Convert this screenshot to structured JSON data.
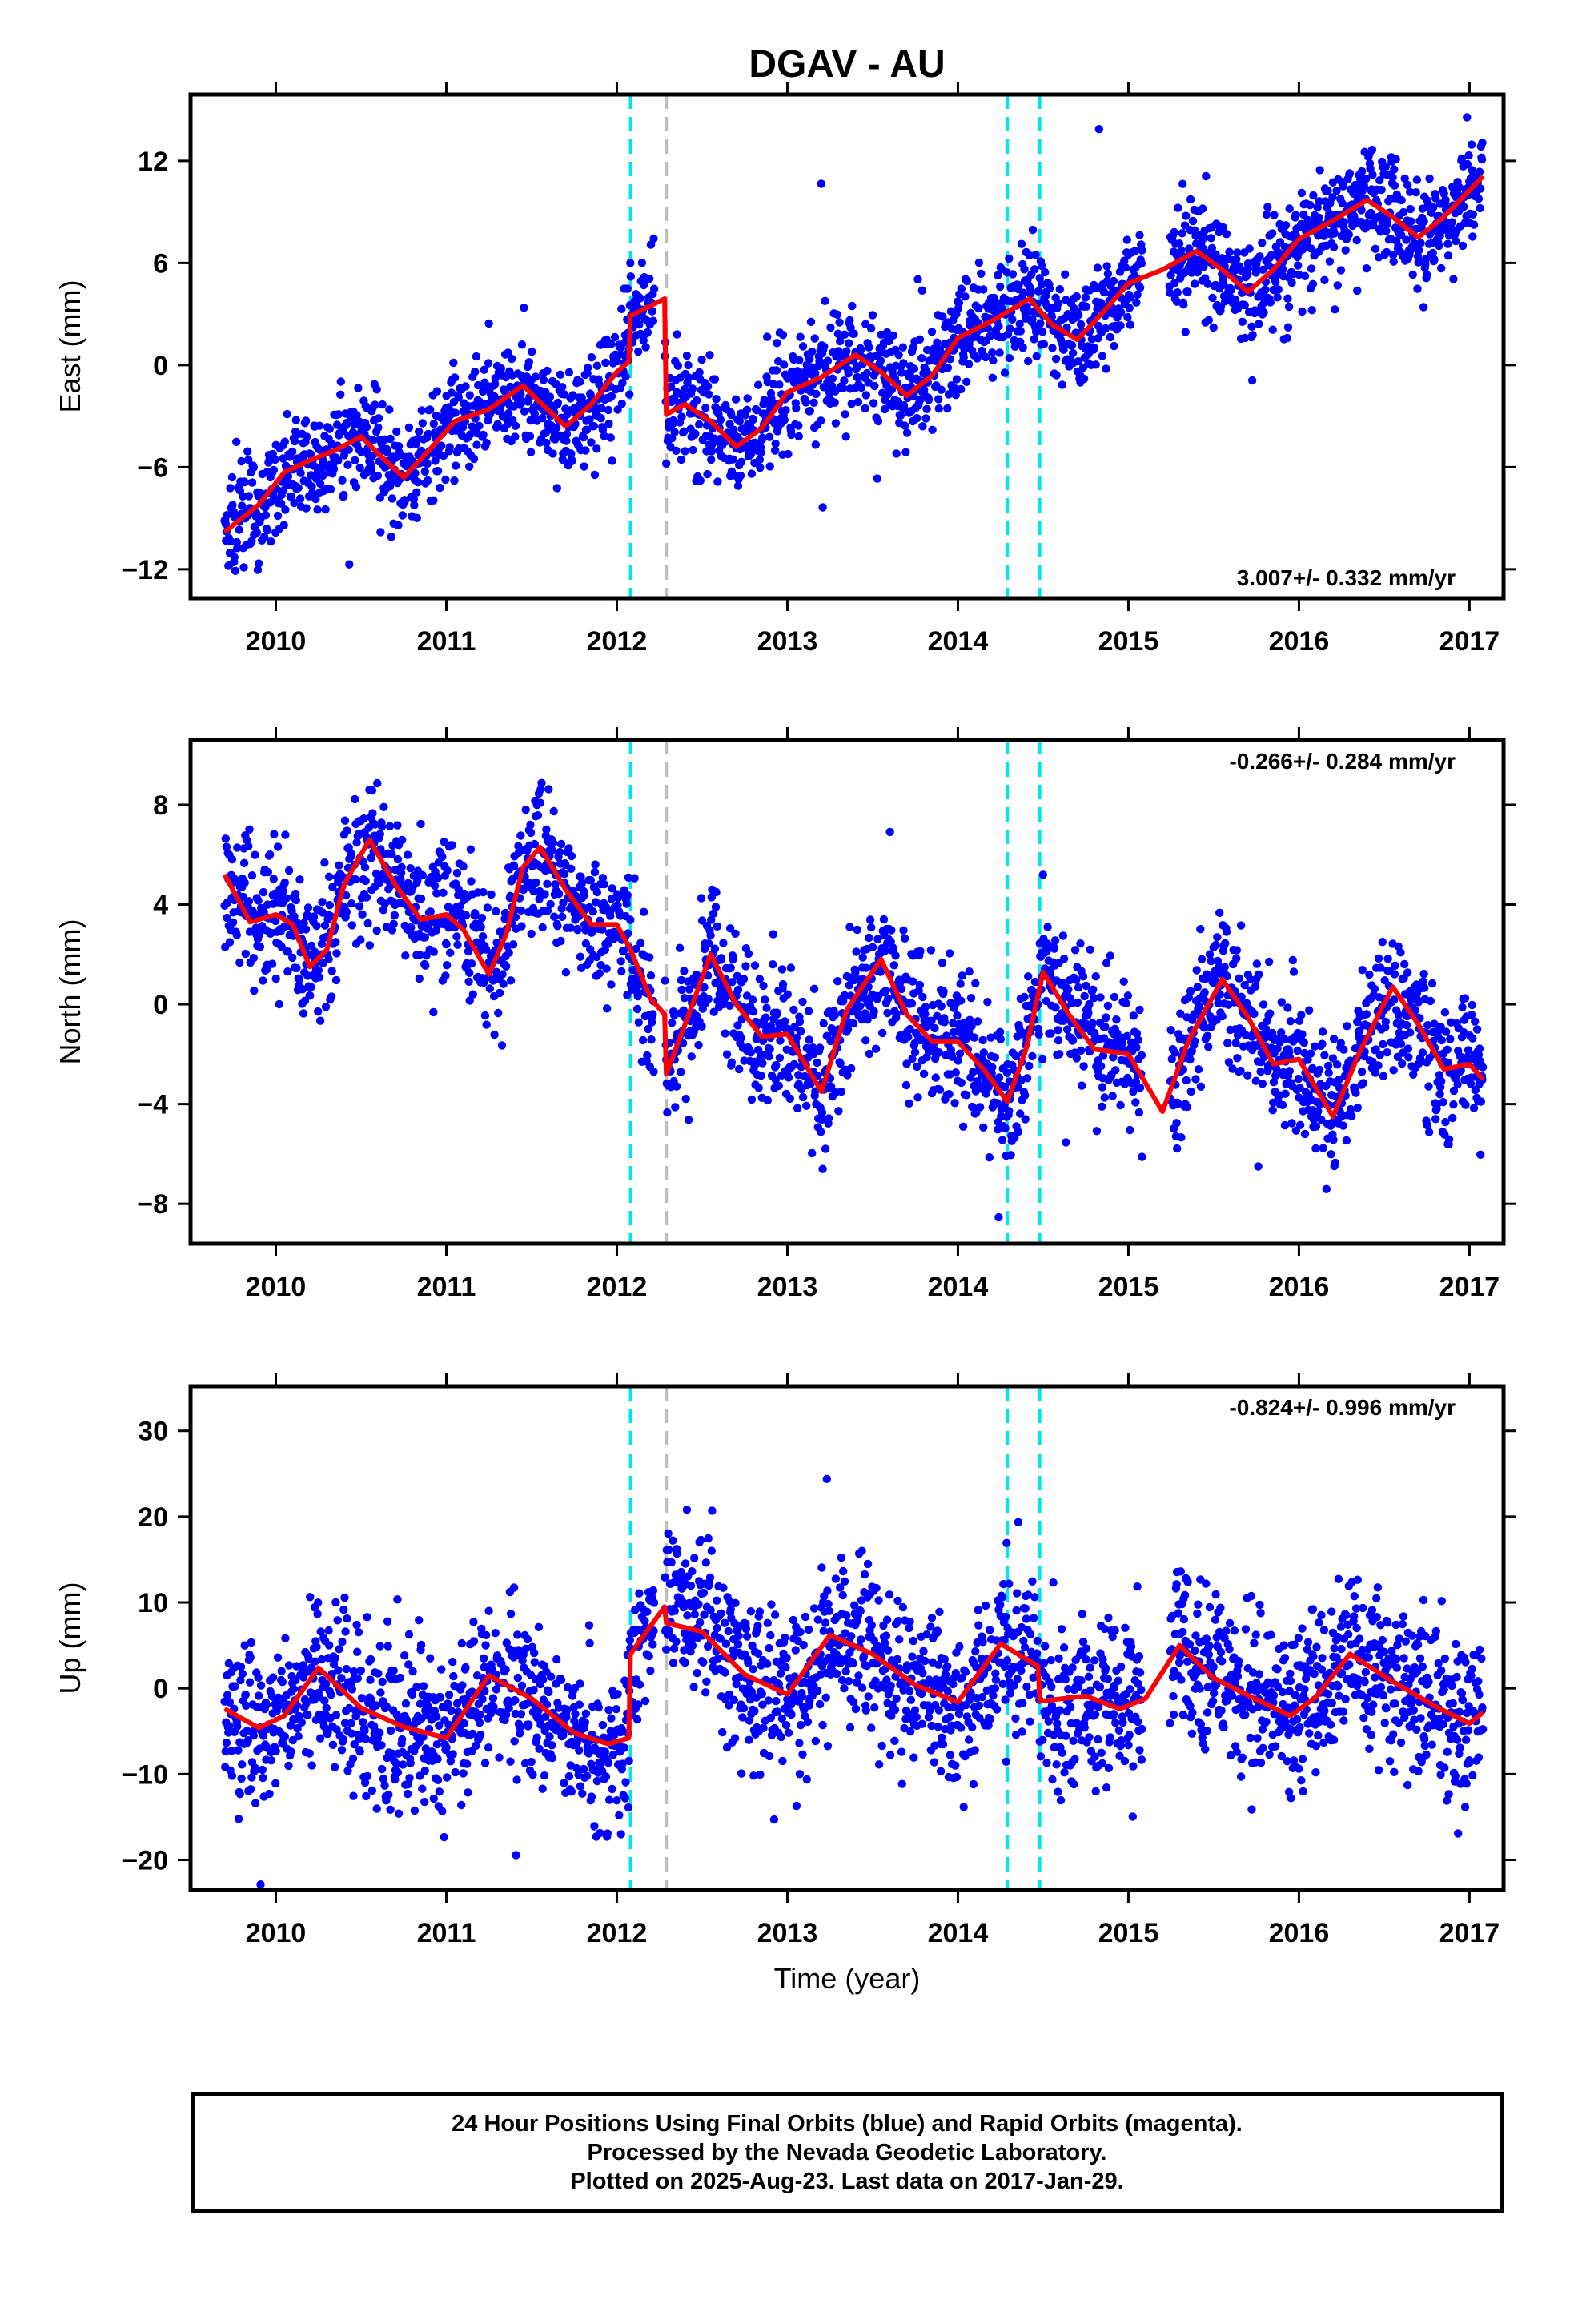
{
  "chart_data": {
    "type": "scatter",
    "title": "DGAV - AU",
    "xlabel": "Time (year)",
    "xlim": [
      2009.5,
      2017.2
    ],
    "x_ticks": [
      "2010",
      "2011",
      "2012",
      "2013",
      "2014",
      "2015",
      "2016",
      "2017"
    ],
    "event_lines": [
      {
        "x": 2012.08,
        "color": "#00e5ee",
        "style": "dashed"
      },
      {
        "x": 2012.29,
        "color": "#c0c0c0",
        "style": "dashed"
      },
      {
        "x": 2014.29,
        "color": "#00e5ee",
        "style": "dashed"
      },
      {
        "x": 2014.48,
        "color": "#00e5ee",
        "style": "dashed"
      }
    ],
    "data_start": 2009.7,
    "data_end": 2017.08,
    "point_color": "#0000ff",
    "model_color": "#ff0000",
    "panels": [
      {
        "key": "east",
        "ylabel": "East (mm)",
        "ylim": [
          -13.7,
          15.9
        ],
        "y_ticks": [
          -12,
          -6,
          0,
          6,
          12
        ],
        "rate_label": "3.007+/- 0.332 mm/yr",
        "rate_position": "bottom-right",
        "model": [
          [
            2009.7,
            -9.8
          ],
          [
            2009.9,
            -8.2
          ],
          [
            2010.05,
            -6.3
          ],
          [
            2010.2,
            -5.6
          ],
          [
            2010.35,
            -5.0
          ],
          [
            2010.5,
            -4.2
          ],
          [
            2010.6,
            -5.2
          ],
          [
            2010.75,
            -6.6
          ],
          [
            2010.9,
            -5.0
          ],
          [
            2011.05,
            -3.3
          ],
          [
            2011.25,
            -2.6
          ],
          [
            2011.45,
            -1.2
          ],
          [
            2011.55,
            -2.2
          ],
          [
            2011.7,
            -3.6
          ],
          [
            2011.85,
            -2.3
          ],
          [
            2012.0,
            -0.4
          ],
          [
            2012.07,
            0.2
          ],
          [
            2012.08,
            2.9
          ],
          [
            2012.28,
            3.9
          ],
          [
            2012.29,
            -2.9
          ],
          [
            2012.4,
            -2.3
          ],
          [
            2012.55,
            -3.3
          ],
          [
            2012.7,
            -4.8
          ],
          [
            2012.85,
            -3.7
          ],
          [
            2013.0,
            -1.6
          ],
          [
            2013.2,
            -0.7
          ],
          [
            2013.4,
            0.6
          ],
          [
            2013.55,
            -0.4
          ],
          [
            2013.7,
            -1.8
          ],
          [
            2013.85,
            -0.6
          ],
          [
            2014.0,
            1.6
          ],
          [
            2014.2,
            2.6
          ],
          [
            2014.42,
            3.9
          ],
          [
            2014.55,
            2.4
          ],
          [
            2014.7,
            1.5
          ],
          [
            2014.85,
            3.1
          ],
          [
            2015.0,
            4.8
          ],
          [
            2015.2,
            5.6
          ],
          [
            2015.4,
            6.7
          ],
          [
            2015.55,
            5.6
          ],
          [
            2015.7,
            4.3
          ],
          [
            2015.85,
            5.6
          ],
          [
            2016.0,
            7.4
          ],
          [
            2016.2,
            8.5
          ],
          [
            2016.4,
            9.7
          ],
          [
            2016.55,
            8.7
          ],
          [
            2016.7,
            7.5
          ],
          [
            2016.85,
            8.7
          ],
          [
            2017.08,
            11.1
          ]
        ]
      },
      {
        "key": "north",
        "ylabel": "North (mm)",
        "ylim": [
          -9.6,
          10.6
        ],
        "y_ticks": [
          -8,
          -4,
          0,
          4,
          8
        ],
        "rate_label": "-0.266+/- 0.284 mm/yr",
        "rate_position": "top-right",
        "model": [
          [
            2009.7,
            5.2
          ],
          [
            2009.85,
            3.3
          ],
          [
            2010.0,
            3.6
          ],
          [
            2010.1,
            3.2
          ],
          [
            2010.2,
            1.5
          ],
          [
            2010.3,
            2.2
          ],
          [
            2010.4,
            4.8
          ],
          [
            2010.55,
            6.6
          ],
          [
            2010.7,
            4.8
          ],
          [
            2010.85,
            3.4
          ],
          [
            2011.0,
            3.6
          ],
          [
            2011.1,
            3.0
          ],
          [
            2011.25,
            1.2
          ],
          [
            2011.35,
            2.8
          ],
          [
            2011.45,
            5.5
          ],
          [
            2011.55,
            6.3
          ],
          [
            2011.7,
            4.6
          ],
          [
            2011.85,
            3.2
          ],
          [
            2012.0,
            3.2
          ],
          [
            2012.08,
            2.2
          ],
          [
            2012.2,
            0.2
          ],
          [
            2012.28,
            -0.4
          ],
          [
            2012.29,
            -2.8
          ],
          [
            2012.4,
            -0.8
          ],
          [
            2012.55,
            2.0
          ],
          [
            2012.7,
            0.0
          ],
          [
            2012.85,
            -1.3
          ],
          [
            2013.0,
            -1.2
          ],
          [
            2013.2,
            -3.5
          ],
          [
            2013.35,
            -0.2
          ],
          [
            2013.55,
            1.8
          ],
          [
            2013.7,
            -0.4
          ],
          [
            2013.85,
            -1.5
          ],
          [
            2014.0,
            -1.5
          ],
          [
            2014.15,
            -2.6
          ],
          [
            2014.29,
            -3.9
          ],
          [
            2014.4,
            -1.8
          ],
          [
            2014.5,
            1.3
          ],
          [
            2014.65,
            -0.4
          ],
          [
            2014.8,
            -1.8
          ],
          [
            2015.0,
            -2.0
          ],
          [
            2015.2,
            -4.3
          ],
          [
            2015.35,
            -1.5
          ],
          [
            2015.55,
            1.0
          ],
          [
            2015.7,
            -0.5
          ],
          [
            2015.85,
            -2.4
          ],
          [
            2016.0,
            -2.2
          ],
          [
            2016.2,
            -4.5
          ],
          [
            2016.35,
            -2.0
          ],
          [
            2016.55,
            0.7
          ],
          [
            2016.7,
            -0.8
          ],
          [
            2016.85,
            -2.6
          ],
          [
            2017.0,
            -2.4
          ],
          [
            2017.08,
            -3.0
          ]
        ]
      },
      {
        "key": "up",
        "ylabel": "Up (mm)",
        "ylim": [
          -23.5,
          35.2
        ],
        "y_ticks": [
          -20,
          -10,
          0,
          10,
          20,
          30
        ],
        "rate_label": "-0.824+/- 0.996 mm/yr",
        "rate_position": "top-right",
        "model": [
          [
            2009.7,
            -2.4
          ],
          [
            2009.9,
            -4.6
          ],
          [
            2010.05,
            -3.2
          ],
          [
            2010.25,
            2.4
          ],
          [
            2010.5,
            -2.3
          ],
          [
            2010.75,
            -4.5
          ],
          [
            2011.0,
            -5.8
          ],
          [
            2011.25,
            1.5
          ],
          [
            2011.5,
            -1.2
          ],
          [
            2011.75,
            -5.2
          ],
          [
            2011.95,
            -6.5
          ],
          [
            2012.07,
            -5.8
          ],
          [
            2012.08,
            4.0
          ],
          [
            2012.28,
            9.5
          ],
          [
            2012.29,
            7.6
          ],
          [
            2012.5,
            6.6
          ],
          [
            2012.75,
            1.6
          ],
          [
            2013.0,
            -0.7
          ],
          [
            2013.25,
            6.2
          ],
          [
            2013.5,
            4.0
          ],
          [
            2013.75,
            0.4
          ],
          [
            2014.0,
            -1.6
          ],
          [
            2014.25,
            5.2
          ],
          [
            2014.47,
            2.6
          ],
          [
            2014.48,
            -1.5
          ],
          [
            2014.75,
            -0.9
          ],
          [
            2014.95,
            -2.4
          ],
          [
            2015.1,
            -1.2
          ],
          [
            2015.3,
            5.0
          ],
          [
            2015.5,
            1.2
          ],
          [
            2015.75,
            -1.3
          ],
          [
            2015.95,
            -3.2
          ],
          [
            2016.1,
            -1.0
          ],
          [
            2016.3,
            4.0
          ],
          [
            2016.55,
            0.8
          ],
          [
            2016.8,
            -2.1
          ],
          [
            2017.0,
            -4.1
          ],
          [
            2017.08,
            -2.8
          ]
        ]
      }
    ]
  },
  "footer": {
    "line1": "24 Hour Positions Using Final Orbits (blue) and Rapid Orbits (magenta).",
    "line2": "Processed by the Nevada Geodetic Laboratory.",
    "line3": "Plotted on 2025-Aug-23. Last data on 2017-Jan-29."
  }
}
